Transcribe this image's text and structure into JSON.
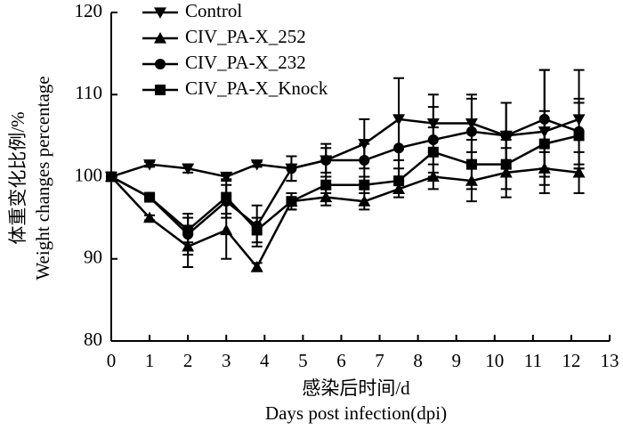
{
  "chart_data": {
    "type": "line",
    "ylabel": [
      "体重变化比例/%",
      "Weight changes percentage"
    ],
    "xlabel": [
      "感染后时间/d",
      "Days post infection(dpi)"
    ],
    "xlim": [
      0,
      13
    ],
    "xticks": [
      0,
      1,
      2,
      3,
      4,
      5,
      6,
      7,
      8,
      9,
      10,
      11,
      12,
      13
    ],
    "ylim": [
      80,
      120
    ],
    "yticks": [
      80,
      90,
      100,
      110,
      120
    ],
    "legend": "upper left",
    "color": "#000000",
    "x": [
      0,
      1,
      2,
      3,
      3.8,
      4.7,
      5.6,
      6.6,
      7.5,
      8.4,
      9.4,
      10.3,
      11.3,
      12.2
    ],
    "series": [
      {
        "name": "Control",
        "marker": "triangle-down",
        "values": [
          100,
          101.5,
          101,
          100,
          101.5,
          101,
          102,
          104,
          107,
          106.5,
          106.5,
          105,
          105.5,
          107
        ],
        "errors": [
          0,
          0.3,
          0.5,
          0.3,
          0.3,
          1.5,
          1.5,
          3,
          5,
          3.5,
          3.5,
          4,
          7.5,
          6
        ]
      },
      {
        "name": "CIV_PA-X_252",
        "marker": "triangle-up",
        "values": [
          100,
          95,
          91.5,
          93.5,
          89,
          97,
          97.5,
          97,
          98.5,
          100,
          99.5,
          100.5,
          101,
          100.5
        ],
        "errors": [
          0,
          0.3,
          2.5,
          3.5,
          0.5,
          1,
          1,
          1,
          1,
          1.5,
          2.5,
          3,
          2,
          2.5
        ]
      },
      {
        "name": "CIV_PA-X_232",
        "marker": "circle",
        "values": [
          100,
          97.5,
          93,
          97,
          94,
          101,
          102,
          102,
          103.5,
          104.5,
          105.5,
          105,
          107,
          105.5
        ],
        "errors": [
          0,
          0.3,
          2.5,
          2,
          2.5,
          1.5,
          2,
          2,
          4,
          4,
          4,
          4,
          6,
          4
        ]
      },
      {
        "name": "CIV_PA-X_Knock",
        "marker": "square",
        "values": [
          100,
          97.5,
          93.5,
          97.5,
          93.5,
          97,
          99,
          99,
          99.5,
          103,
          101.5,
          101.5,
          104,
          105
        ],
        "errors": [
          0,
          0.3,
          1.5,
          2,
          1.5,
          1,
          1,
          1,
          1.5,
          3,
          3,
          3,
          4,
          4
        ]
      }
    ]
  }
}
